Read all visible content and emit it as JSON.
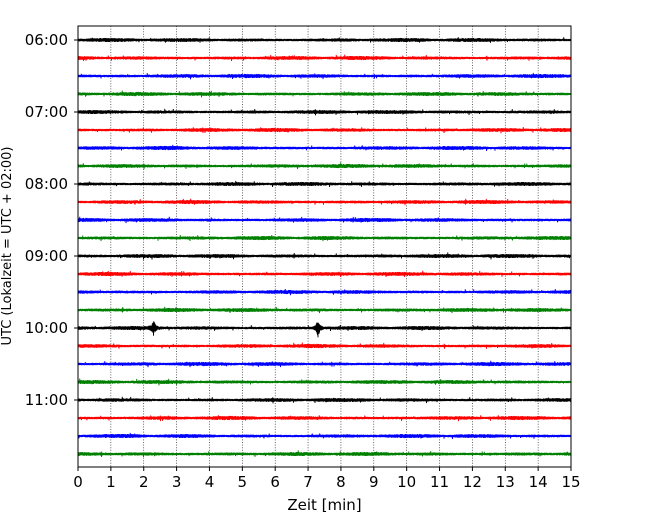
{
  "chart_data": {
    "type": "line",
    "subtype": "helicorder",
    "xlabel": "Zeit  [min]",
    "ylabel": "UTC (Lokalzeit = UTC + 02:00)",
    "xlim": [
      0,
      15
    ],
    "x_ticks": [
      "0",
      "1",
      "2",
      "3",
      "4",
      "5",
      "6",
      "7",
      "8",
      "9",
      "10",
      "11",
      "12",
      "13",
      "14",
      "15"
    ],
    "y_tick_labels": [
      "06:00",
      "07:00",
      "08:00",
      "09:00",
      "10:00",
      "11:00"
    ],
    "traces_start": "06:00",
    "trace_interval_minutes": 15,
    "trace_count": 24,
    "trace_colors": [
      "#000000",
      "#ff0000",
      "#0000ff",
      "#008000"
    ],
    "grid": "vertical dotted lines at each minute",
    "events": [
      {
        "trace_start": "10:00",
        "minute": 2.3,
        "amplitude": 7
      },
      {
        "trace_start": "10:00",
        "minute": 7.3,
        "amplitude": 9
      }
    ]
  }
}
